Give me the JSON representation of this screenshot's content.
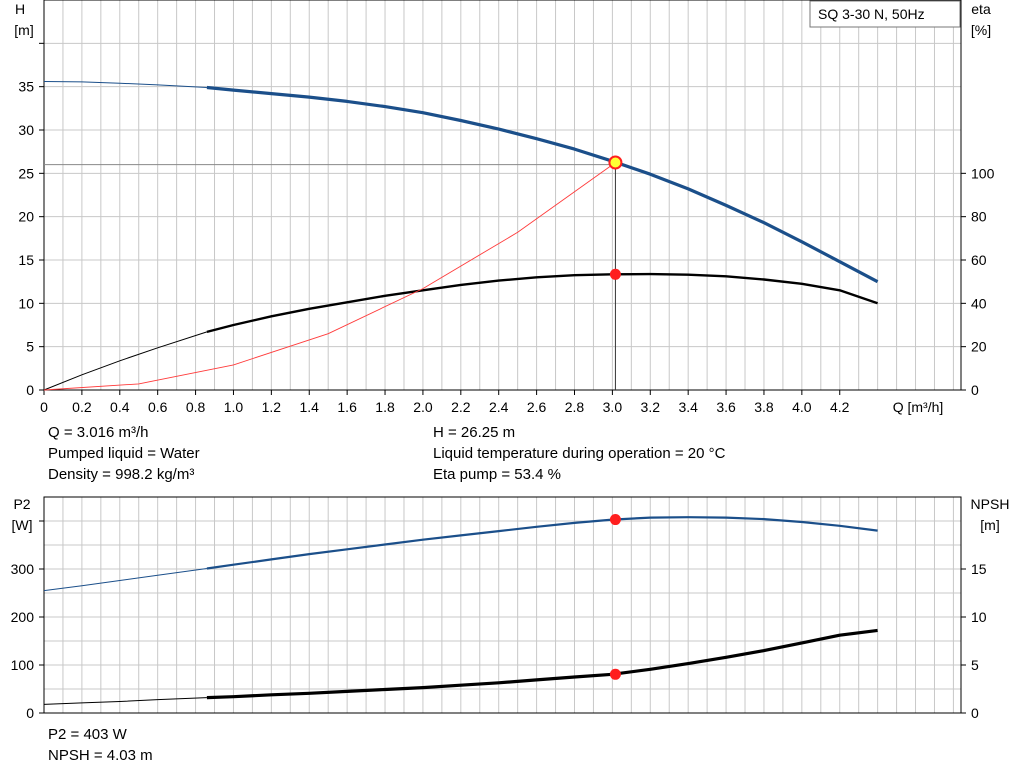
{
  "pump_label": "SQ 3-30 N, 50Hz",
  "colors": {
    "curve_blue": "#1b4f8a",
    "curve_black": "#000000",
    "operating_point": "#ff1f1f",
    "duty_point_fill": "#ffff33",
    "system_curve": "#ff3b3b",
    "grid": "#c8c8c8",
    "reference_line": "#888888"
  },
  "info_top": {
    "q": "Q = 3.016 m³/h",
    "liquid": "Pumped liquid = Water",
    "density": "Density = 998.2 kg/m³",
    "h": "H = 26.25 m",
    "temp": "Liquid temperature during operation = 20 °C",
    "eta": "Eta pump = 53.4 %"
  },
  "info_bottom": {
    "p2": "P2 = 403 W",
    "npsh": "NPSH = 4.03 m"
  },
  "chart_data": [
    {
      "type": "line",
      "x_axis": {
        "label": "Q [m³/h]",
        "range": [
          0,
          4.84
        ],
        "ticks": [
          "0",
          "0.2",
          "0.4",
          "0.6",
          "0.8",
          "1.0",
          "1.2",
          "1.4",
          "1.6",
          "1.8",
          "2.0",
          "2.2",
          "2.4",
          "2.6",
          "2.8",
          "3.0",
          "3.2",
          "3.4",
          "3.6",
          "3.8",
          "4.0",
          "4.2"
        ]
      },
      "y_left": {
        "label_line1": "H",
        "label_line2": "[m]",
        "range": [
          0,
          45
        ],
        "ticks": [
          "0",
          "5",
          "10",
          "15",
          "20",
          "25",
          "30",
          "35"
        ]
      },
      "y_right": {
        "label_line1": "eta",
        "label_line2": "[%]",
        "range": [
          0,
          180
        ],
        "ticks": [
          "0",
          "20",
          "40",
          "60",
          "80",
          "100"
        ]
      },
      "grid": true,
      "series": [
        {
          "axis": "left",
          "style": "head",
          "dashed_range": [
            0,
            0.86
          ],
          "x": [
            0,
            0.2,
            0.4,
            0.6,
            0.86,
            1.0,
            1.2,
            1.4,
            1.6,
            1.8,
            2.0,
            2.2,
            2.4,
            2.6,
            2.8,
            3.0,
            3.2,
            3.4,
            3.6,
            3.8,
            4.0,
            4.2,
            4.4
          ],
          "y": [
            35.6,
            35.55,
            35.4,
            35.2,
            34.9,
            34.6,
            34.2,
            33.8,
            33.3,
            32.7,
            32.0,
            31.1,
            30.1,
            29.0,
            27.8,
            26.4,
            24.9,
            23.2,
            21.3,
            19.3,
            17.1,
            14.8,
            12.5
          ]
        },
        {
          "axis": "right",
          "style": "efficiency",
          "dashed_range": [
            0,
            0.86
          ],
          "x": [
            0,
            0.2,
            0.4,
            0.6,
            0.86,
            1.0,
            1.2,
            1.4,
            1.6,
            1.8,
            2.0,
            2.2,
            2.4,
            2.6,
            2.8,
            3.0,
            3.2,
            3.4,
            3.6,
            3.8,
            4.0,
            4.2,
            4.4
          ],
          "y": [
            0,
            7,
            13.5,
            19.5,
            26.8,
            30,
            34,
            37.5,
            40.5,
            43.5,
            46,
            48.5,
            50.5,
            52,
            53,
            53.4,
            53.5,
            53.2,
            52.5,
            51,
            49,
            46,
            40
          ]
        },
        {
          "axis": "left",
          "style": "system",
          "x": [
            0,
            0.5,
            1.0,
            1.5,
            2.0,
            2.5,
            3.0
          ],
          "y": [
            0,
            0.7,
            2.9,
            6.5,
            11.7,
            18.2,
            26.0
          ]
        }
      ],
      "operating_lines": {
        "q": 3.016,
        "h": 26.0
      },
      "duty_point": {
        "x": 3.016,
        "y": 26.25
      },
      "eta_point": {
        "x": 3.016,
        "y": 53.4
      }
    },
    {
      "type": "line",
      "x_axis": {
        "range": [
          0,
          4.84
        ]
      },
      "y_left": {
        "label_line1": "P2",
        "label_line2": "[W]",
        "range": [
          0,
          450
        ],
        "ticks": [
          "0",
          "100",
          "200",
          "300"
        ]
      },
      "y_right": {
        "label_line1": "NPSH",
        "label_line2": "[m]",
        "range": [
          0,
          22.5
        ],
        "ticks": [
          "0",
          "5",
          "10",
          "15"
        ]
      },
      "grid": true,
      "series": [
        {
          "axis": "left",
          "style": "power",
          "dashed_range": [
            0,
            0.86
          ],
          "x": [
            0,
            0.2,
            0.4,
            0.6,
            0.86,
            1.0,
            1.2,
            1.4,
            1.6,
            1.8,
            2.0,
            2.2,
            2.4,
            2.6,
            2.8,
            3.0,
            3.2,
            3.4,
            3.6,
            3.8,
            4.0,
            4.2,
            4.4
          ],
          "y": [
            255,
            265,
            276,
            287,
            301,
            309,
            320,
            331,
            341,
            351,
            361,
            370,
            379,
            388,
            396,
            403,
            407,
            408,
            407,
            404,
            398,
            390,
            380
          ]
        },
        {
          "axis": "right",
          "style": "npsh",
          "dashed_range": [
            0,
            0.86
          ],
          "x": [
            0,
            0.2,
            0.4,
            0.6,
            0.86,
            1.0,
            1.2,
            1.4,
            1.6,
            1.8,
            2.0,
            2.2,
            2.4,
            2.6,
            2.8,
            3.0,
            3.2,
            3.4,
            3.6,
            3.8,
            4.0,
            4.2,
            4.4
          ],
          "y": [
            0.9,
            1.05,
            1.2,
            1.4,
            1.6,
            1.7,
            1.9,
            2.05,
            2.25,
            2.45,
            2.65,
            2.9,
            3.15,
            3.45,
            3.75,
            4.03,
            4.55,
            5.15,
            5.8,
            6.5,
            7.3,
            8.1,
            8.6
          ]
        }
      ],
      "markers": [
        {
          "axis": "left",
          "x": 3.016,
          "y": 403
        },
        {
          "axis": "right",
          "x": 3.016,
          "y": 4.03
        }
      ]
    }
  ]
}
